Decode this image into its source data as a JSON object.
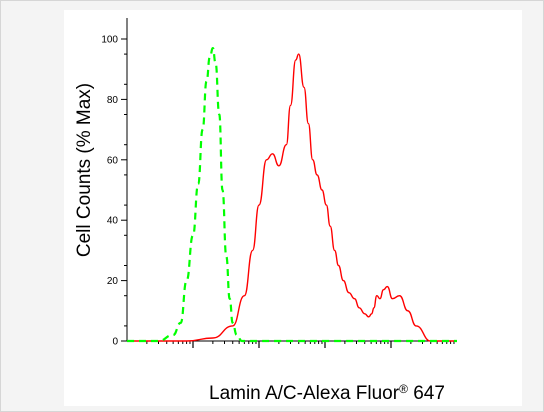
{
  "chart_data": {
    "type": "line",
    "title": "",
    "ylabel": "Cell Counts (% Max)",
    "xlabel": {
      "main": "Lamin A/C-Alexa Fluor",
      "superscript": "®",
      "suffix": " 647"
    },
    "y_ticks": [
      "0",
      "20",
      "40",
      "60",
      "80",
      "100"
    ],
    "ylim": [
      0,
      100
    ],
    "x_scale": "log",
    "xlim": [
      1,
      100000
    ],
    "x_ticks_unlabeled": [
      10,
      100,
      1000,
      10000
    ],
    "grid": false,
    "series": [
      {
        "color": "#ff0000",
        "style": "solid",
        "x": [
          1,
          3,
          8,
          20,
          40,
          60,
          80,
          100,
          130,
          160,
          200,
          260,
          300,
          360,
          400,
          480,
          560,
          650,
          760,
          900,
          1050,
          1200,
          1400,
          1600,
          1900,
          2300,
          2800,
          3300,
          4000,
          4600,
          5100,
          5500,
          6100,
          6800,
          7700,
          8800,
          10500,
          13500,
          18000,
          24000,
          40000,
          100000
        ],
        "y": [
          0,
          0,
          0,
          1,
          5,
          15,
          30,
          45,
          60,
          62,
          58,
          65,
          78,
          93,
          95,
          84,
          72,
          60,
          55,
          50,
          45,
          38,
          30,
          25,
          20,
          16,
          14,
          11,
          9,
          8,
          9,
          11,
          15,
          14,
          17,
          18,
          14,
          15,
          10,
          5,
          0,
          0
        ]
      },
      {
        "color": "#00ff00",
        "style": "dashed",
        "x": [
          1,
          3,
          5,
          6.5,
          8,
          10,
          12,
          14,
          16,
          18,
          20,
          22,
          25,
          28,
          32,
          36,
          40,
          46,
          55,
          70,
          100,
          1000,
          10000,
          100000
        ],
        "y": [
          0,
          0,
          2,
          6,
          20,
          35,
          52,
          70,
          86,
          94,
          97,
          92,
          75,
          50,
          28,
          14,
          6,
          2,
          0,
          0,
          0,
          0,
          0,
          0
        ]
      }
    ]
  }
}
